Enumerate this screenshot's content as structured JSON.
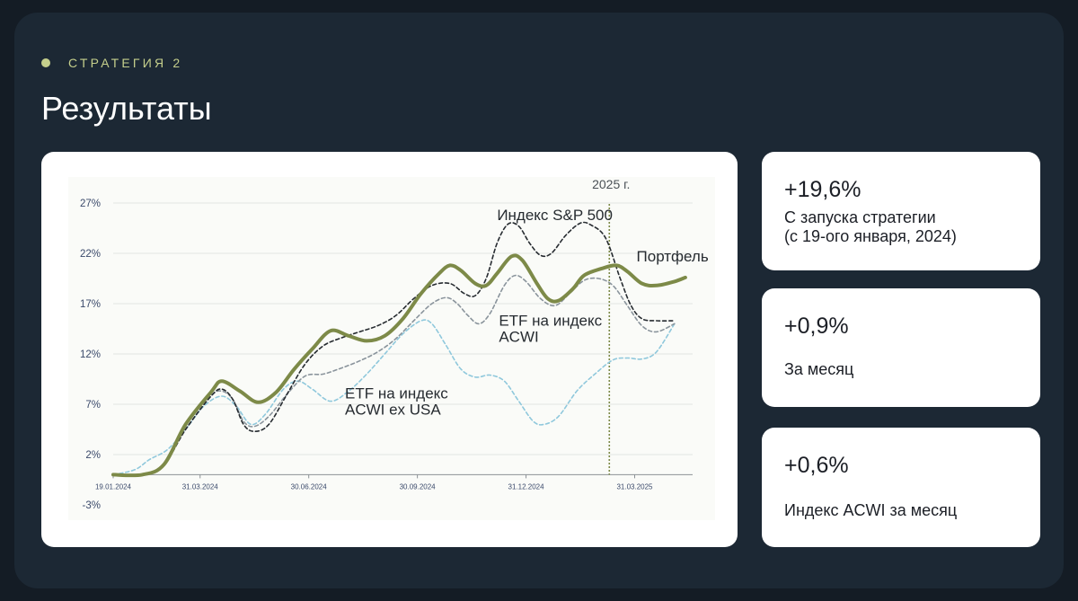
{
  "header": {
    "eyebrow": "СТРАТЕГИЯ 2",
    "title": "Результаты"
  },
  "stats": [
    {
      "value": "+19,6%",
      "label_lines": [
        "С запуска стратегии",
        "(с 19-ого января, 2024)"
      ]
    },
    {
      "value": "+0,9%",
      "label_lines": [
        "За месяц"
      ]
    },
    {
      "value": "+0,6%",
      "label_lines": [
        "Индекс ACWI за месяц"
      ]
    }
  ],
  "colors": {
    "background": "#141c25",
    "panel": "#1c2834",
    "accent": "#c5cf8c",
    "portfolio": "#7d8a48",
    "sp500": "#262b30",
    "acwi": "#8a949c",
    "acwi_ex_usa": "#8fc8dc",
    "marker_2025": "#7d8a48"
  },
  "chart_data": {
    "type": "line",
    "y_ticks": [
      "27%",
      "22%",
      "17%",
      "12%",
      "7%",
      "2%",
      "-3%"
    ],
    "y_tick_values": [
      27,
      22,
      17,
      12,
      7,
      2,
      -3
    ],
    "ylim": [
      -3,
      27
    ],
    "x_ticks": [
      "19.01.2024",
      "31.03.2024",
      "30.06.2024",
      "30.09.2024",
      "31.12.2024",
      "31.03.2025"
    ],
    "x_tick_positions": [
      0,
      2.4,
      5.4,
      8.4,
      11.4,
      14.4
    ],
    "xlim": [
      0,
      16
    ],
    "grid": true,
    "marker": {
      "label": "2025 г.",
      "x": 13.7
    },
    "series": [
      {
        "name": "Портфель",
        "label_lines": [
          "Портфель"
        ],
        "style": "solid",
        "label_at": [
          14.45,
          21.2
        ],
        "points": [
          [
            0,
            0
          ],
          [
            0.8,
            0
          ],
          [
            1.4,
            1
          ],
          [
            2,
            5
          ],
          [
            2.7,
            8.2
          ],
          [
            3.0,
            9.3
          ],
          [
            3.5,
            8.3
          ],
          [
            4.0,
            7.2
          ],
          [
            4.5,
            8.2
          ],
          [
            5.0,
            10.5
          ],
          [
            5.5,
            12.5
          ],
          [
            6.0,
            14.3
          ],
          [
            6.5,
            13.8
          ],
          [
            7.0,
            13.3
          ],
          [
            7.5,
            13.8
          ],
          [
            8.0,
            15.5
          ],
          [
            8.5,
            18.0
          ],
          [
            9.0,
            20.0
          ],
          [
            9.3,
            20.8
          ],
          [
            9.6,
            20.3
          ],
          [
            10.0,
            19.0
          ],
          [
            10.3,
            18.8
          ],
          [
            10.6,
            20.0
          ],
          [
            11.0,
            21.7
          ],
          [
            11.3,
            21.3
          ],
          [
            11.7,
            19.0
          ],
          [
            12.0,
            17.5
          ],
          [
            12.3,
            17.3
          ],
          [
            12.7,
            18.5
          ],
          [
            13.0,
            19.8
          ],
          [
            13.5,
            20.5
          ],
          [
            13.9,
            20.8
          ],
          [
            14.2,
            20.2
          ],
          [
            14.6,
            19.0
          ],
          [
            15.0,
            18.8
          ],
          [
            15.5,
            19.2
          ],
          [
            15.8,
            19.6
          ]
        ]
      },
      {
        "name": "Индекс S&P 500",
        "label_lines": [
          "Индекс S&P 500"
        ],
        "style": "dashed",
        "label_at": [
          10.6,
          25.3
        ],
        "points": [
          [
            0,
            0
          ],
          [
            0.8,
            0
          ],
          [
            1.4,
            1
          ],
          [
            2,
            4.5
          ],
          [
            2.7,
            7.8
          ],
          [
            3.0,
            8.5
          ],
          [
            3.3,
            7.5
          ],
          [
            3.6,
            5.0
          ],
          [
            3.9,
            4.3
          ],
          [
            4.3,
            5.0
          ],
          [
            4.8,
            8.0
          ],
          [
            5.3,
            11.0
          ],
          [
            5.8,
            12.8
          ],
          [
            6.3,
            13.6
          ],
          [
            6.8,
            14.2
          ],
          [
            7.3,
            14.8
          ],
          [
            7.8,
            15.8
          ],
          [
            8.3,
            17.5
          ],
          [
            8.8,
            18.8
          ],
          [
            9.3,
            19.0
          ],
          [
            9.7,
            18.0
          ],
          [
            10.0,
            17.8
          ],
          [
            10.3,
            19.5
          ],
          [
            10.6,
            23.0
          ],
          [
            10.9,
            24.9
          ],
          [
            11.2,
            24.7
          ],
          [
            11.5,
            23.0
          ],
          [
            11.8,
            21.8
          ],
          [
            12.1,
            22.0
          ],
          [
            12.5,
            23.8
          ],
          [
            12.9,
            25.0
          ],
          [
            13.2,
            24.8
          ],
          [
            13.6,
            23.5
          ],
          [
            14.0,
            19.5
          ],
          [
            14.3,
            16.8
          ],
          [
            14.6,
            15.5
          ],
          [
            15.0,
            15.3
          ],
          [
            15.5,
            15.3
          ]
        ]
      },
      {
        "name": "ETF на индекс ACWI",
        "label_lines": [
          "ETF на индекс",
          "ACWI"
        ],
        "style": "dashed",
        "label_at": [
          10.65,
          14.8
        ],
        "points": [
          [
            0,
            0
          ],
          [
            0.8,
            0
          ],
          [
            1.4,
            1
          ],
          [
            2,
            4.5
          ],
          [
            2.7,
            7.8
          ],
          [
            3.0,
            8.3
          ],
          [
            3.3,
            7.5
          ],
          [
            3.6,
            5.3
          ],
          [
            3.9,
            4.8
          ],
          [
            4.3,
            5.8
          ],
          [
            4.8,
            8.0
          ],
          [
            5.3,
            9.8
          ],
          [
            5.8,
            10.0
          ],
          [
            6.3,
            10.6
          ],
          [
            6.8,
            11.3
          ],
          [
            7.3,
            12.2
          ],
          [
            7.8,
            13.5
          ],
          [
            8.3,
            15.3
          ],
          [
            8.8,
            17.0
          ],
          [
            9.2,
            17.6
          ],
          [
            9.5,
            17.0
          ],
          [
            9.8,
            15.8
          ],
          [
            10.1,
            15.0
          ],
          [
            10.4,
            16.0
          ],
          [
            10.8,
            18.8
          ],
          [
            11.1,
            19.8
          ],
          [
            11.4,
            19.2
          ],
          [
            11.8,
            17.5
          ],
          [
            12.2,
            16.8
          ],
          [
            12.6,
            18.0
          ],
          [
            13.0,
            19.3
          ],
          [
            13.4,
            19.5
          ],
          [
            13.8,
            18.8
          ],
          [
            14.2,
            16.8
          ],
          [
            14.6,
            14.8
          ],
          [
            15.0,
            14.2
          ],
          [
            15.5,
            15.0
          ]
        ]
      },
      {
        "name": "ETF на индекс ACWI ex USA",
        "label_lines": [
          "ETF на индекс",
          "ACWI ex USA"
        ],
        "style": "dashed",
        "label_at": [
          6.4,
          7.6
        ],
        "points": [
          [
            0,
            0
          ],
          [
            0.6,
            0.5
          ],
          [
            1.0,
            1.5
          ],
          [
            1.5,
            2.5
          ],
          [
            2.0,
            4.5
          ],
          [
            2.5,
            6.8
          ],
          [
            3.0,
            7.8
          ],
          [
            3.4,
            6.8
          ],
          [
            3.8,
            5.0
          ],
          [
            4.2,
            6.0
          ],
          [
            4.7,
            8.5
          ],
          [
            5.1,
            9.3
          ],
          [
            5.5,
            8.5
          ],
          [
            6.0,
            7.3
          ],
          [
            6.5,
            8.3
          ],
          [
            7.0,
            10.0
          ],
          [
            7.5,
            12.0
          ],
          [
            8.0,
            14.0
          ],
          [
            8.5,
            15.3
          ],
          [
            8.8,
            15.0
          ],
          [
            9.2,
            12.8
          ],
          [
            9.6,
            10.5
          ],
          [
            10.0,
            9.7
          ],
          [
            10.4,
            9.9
          ],
          [
            10.8,
            9.3
          ],
          [
            11.2,
            7.3
          ],
          [
            11.6,
            5.3
          ],
          [
            11.9,
            5.0
          ],
          [
            12.3,
            5.8
          ],
          [
            12.8,
            8.3
          ],
          [
            13.3,
            10.0
          ],
          [
            13.8,
            11.4
          ],
          [
            14.2,
            11.6
          ],
          [
            14.6,
            11.5
          ],
          [
            15.0,
            12.2
          ],
          [
            15.5,
            15.0
          ]
        ]
      }
    ]
  }
}
